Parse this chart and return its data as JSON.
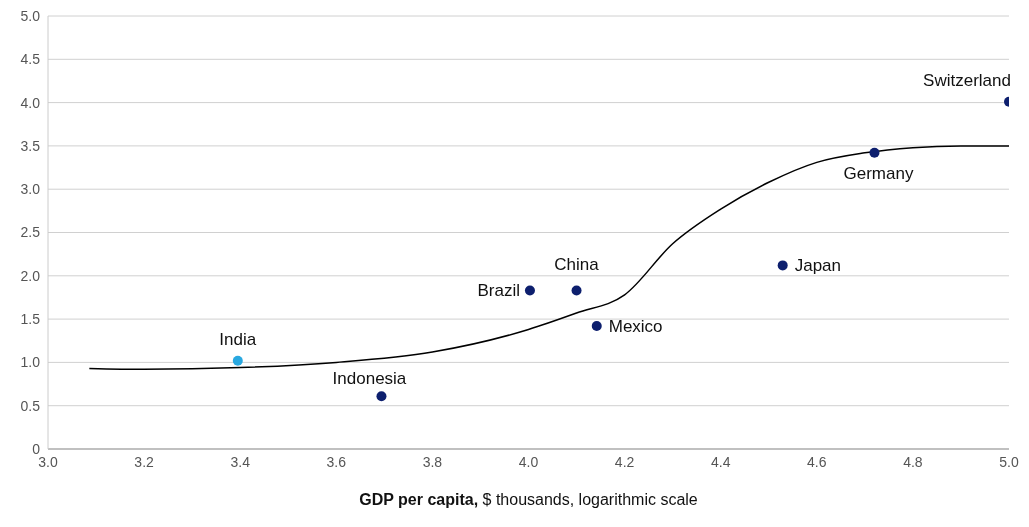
{
  "chart_data": {
    "type": "scatter",
    "xlabel": "GDP per capita, $ thousands, logarithmic scale",
    "xlim": [
      3,
      5
    ],
    "xticks": [
      {
        "value": 3,
        "label": "3.0"
      },
      3.2,
      3.4,
      3.6,
      3.8,
      {
        "value": 4,
        "label": "4.0"
      },
      4.2,
      4.4,
      4.6,
      4.8,
      {
        "value": 5,
        "label": "5.0"
      }
    ],
    "ylim": [
      0,
      5
    ],
    "yticks": [
      0,
      0.5,
      {
        "value": 1,
        "label": "1.0"
      },
      1.5,
      {
        "value": 2,
        "label": "2.0"
      },
      2.5,
      {
        "value": 3,
        "label": "3.0"
      },
      3.5,
      {
        "value": 4,
        "label": "4.0"
      },
      4.5,
      {
        "value": 5,
        "label": "5.0"
      }
    ],
    "grid": "y",
    "series": [
      {
        "marker": "circle",
        "x": [
          3.395,
          3.694,
          4.003,
          4.1,
          4.142,
          4.529,
          4.72,
          5.0
        ],
        "values": [
          1.02,
          0.61,
          1.83,
          1.83,
          1.42,
          2.12,
          3.42,
          4.01
        ],
        "colors": [
          "#29a8e0",
          "#0d1f6e",
          "#0d1f6e",
          "#0d1f6e",
          "#0d1f6e",
          "#0d1f6e",
          "#0d1f6e",
          "#0d1f6e"
        ]
      },
      {
        "type": "line",
        "color": "#000000",
        "x": [
          3.086,
          3.2,
          3.4,
          3.6,
          3.8,
          4.0,
          4.1,
          4.2,
          4.3,
          4.4,
          4.5,
          4.6,
          4.7,
          4.8,
          4.9,
          5.0
        ],
        "values": [
          0.93,
          0.92,
          0.94,
          1.0,
          1.12,
          1.38,
          1.57,
          1.78,
          2.37,
          2.77,
          3.08,
          3.31,
          3.42,
          3.48,
          3.5,
          3.5
        ]
      }
    ],
    "annotations": [
      {
        "text": "India",
        "x": 3.395,
        "y": 1.02
      },
      {
        "text": "Indonesia",
        "x": 3.694,
        "y": 0.61
      },
      {
        "text": "Brazil",
        "x": 4.003,
        "y": 1.83
      },
      {
        "text": "China",
        "x": 4.1,
        "y": 1.83
      },
      {
        "text": "Mexico",
        "x": 4.142,
        "y": 1.42
      },
      {
        "text": "Japan",
        "x": 4.529,
        "y": 2.12
      },
      {
        "text": "Germany",
        "x": 4.72,
        "y": 3.42
      },
      {
        "text": "Switzerland",
        "x": 5.0,
        "y": 4.01
      }
    ]
  }
}
